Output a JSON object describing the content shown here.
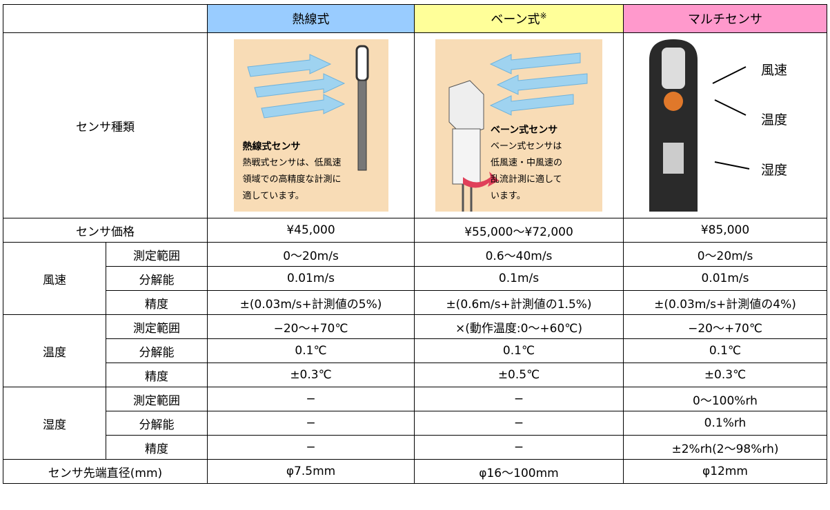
{
  "header": {
    "columns": [
      "熱線式",
      "ベーン式",
      "マルチセンサ"
    ],
    "note_mark": "※"
  },
  "sensor_type": {
    "label": "センサ種類",
    "images": [
      {
        "title": "熱線式センサ",
        "lines": [
          "熱戦式センサは、低風速",
          "領域での高精度な計測に",
          "適しています。"
        ]
      },
      {
        "title": "ベーン式センサ",
        "lines": [
          "ベーン式センサは",
          "低風速・中風速の",
          "乱流計測に適して",
          "います。"
        ]
      },
      {
        "labels": [
          "風速",
          "温度",
          "湿度"
        ]
      }
    ]
  },
  "price": {
    "label": "センサ価格",
    "values": [
      "¥45,000",
      "¥55,000〜¥72,000",
      "¥85,000"
    ]
  },
  "groups": [
    {
      "label": "風速",
      "rows": [
        {
          "label": "測定範囲",
          "values": [
            "0〜20m/s",
            "0.6〜40m/s",
            "0〜20m/s"
          ]
        },
        {
          "label": "分解能",
          "values": [
            "0.01m/s",
            "0.1m/s",
            "0.01m/s"
          ]
        },
        {
          "label": "精度",
          "values": [
            "±(0.03m/s+計測値の5%)",
            "±(0.6m/s+計測値の1.5%)",
            "±(0.03m/s+計測値の4%)"
          ]
        }
      ]
    },
    {
      "label": "温度",
      "rows": [
        {
          "label": "測定範囲",
          "values": [
            "−20〜+70℃",
            "×(動作温度:0〜+60℃)",
            "−20〜+70℃"
          ]
        },
        {
          "label": "分解能",
          "values": [
            "0.1℃",
            "0.1℃",
            "0.1℃"
          ]
        },
        {
          "label": "精度",
          "values": [
            "±0.3℃",
            "±0.5℃",
            "±0.3℃"
          ]
        }
      ]
    },
    {
      "label": "湿度",
      "rows": [
        {
          "label": "測定範囲",
          "values": [
            "−",
            "−",
            "0〜100%rh"
          ]
        },
        {
          "label": "分解能",
          "values": [
            "−",
            "−",
            "0.1%rh"
          ]
        },
        {
          "label": "精度",
          "values": [
            "−",
            "−",
            "±2%rh(2〜98%rh)"
          ]
        }
      ]
    }
  ],
  "diameter": {
    "label": "センサ先端直径(mm)",
    "values": [
      "φ7.5mm",
      "φ16〜100mm",
      "φ12mm"
    ]
  }
}
